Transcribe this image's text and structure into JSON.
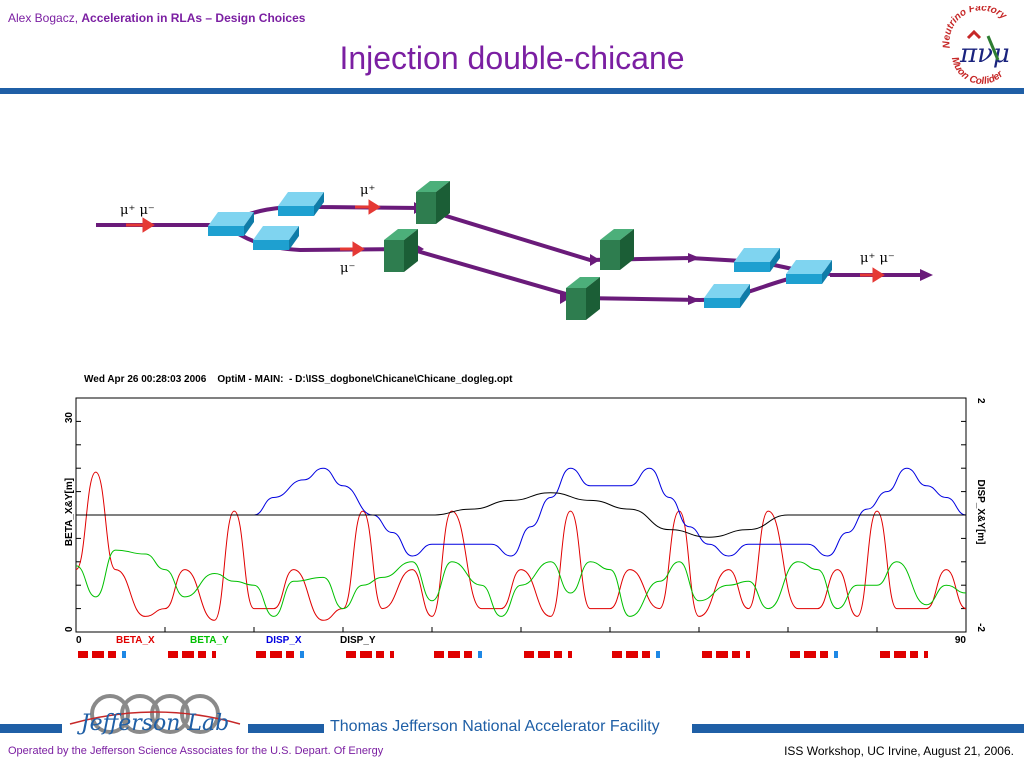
{
  "header": {
    "author": "Alex Bogacz,",
    "talk": "Acceleration in RLAs – Design Choices",
    "title": "Injection double-chicane"
  },
  "logo": {
    "text_top": "Neutrino Factory",
    "text_bottom": "Muon Collider",
    "glyph": "πνμ"
  },
  "diagram": {
    "label_in": "μ⁺ μ⁻",
    "label_upper": "μ⁺",
    "label_lower": "μ⁻",
    "label_out": "μ⁺ μ⁻",
    "colors": {
      "beam": "#6a1b7a",
      "arrow": "#e53935",
      "dipole": "#1ea0d0",
      "quad": "#2e7d4f"
    }
  },
  "plot": {
    "header": "Wed Apr 26 00:28:03 2006    OptiM - MAIN:  - D:\\ISS_dogbone\\Chicane\\Chicane_dogleg.opt"
  },
  "chart_data": {
    "type": "line",
    "title": "",
    "xlabel": "",
    "ylabel": "BETA_X&Y[m]",
    "y2label": "DISP_X&Y[m]",
    "xlim": [
      0,
      90
    ],
    "ylim": [
      0,
      30
    ],
    "y2lim": [
      -2,
      2
    ],
    "x_ticks": [
      "0",
      "90"
    ],
    "y_ticks": [
      "0",
      "30"
    ],
    "y2_ticks": [
      "-2",
      "2"
    ],
    "legend": [
      "BETA_X",
      "BETA_Y",
      "DISP_X",
      "DISP_Y"
    ],
    "series": [
      {
        "name": "BETA_X",
        "color": "#e00000",
        "x": [
          0,
          2,
          4,
          7,
          9,
          11,
          14,
          16,
          18,
          20,
          22,
          25,
          27,
          29,
          31,
          34,
          36,
          38,
          41,
          43,
          45,
          48,
          50,
          52,
          54,
          56,
          59,
          61,
          63,
          66,
          68,
          70,
          73,
          75,
          77,
          79,
          81,
          83,
          86,
          88,
          90
        ],
        "y": [
          8,
          20.5,
          8,
          2,
          3,
          8,
          1.5,
          15.5,
          3,
          3,
          8,
          1.5,
          3,
          15.5,
          3,
          8,
          2,
          15.5,
          3,
          3,
          8,
          2,
          15.5,
          3,
          3,
          8,
          3,
          15.5,
          2,
          8,
          3,
          15.5,
          3,
          3,
          8,
          2,
          15.5,
          3,
          3,
          8,
          3
        ]
      },
      {
        "name": "BETA_Y",
        "color": "#00c000",
        "x": [
          0,
          2,
          4,
          7,
          9,
          11,
          14,
          16,
          18,
          20,
          22,
          25,
          27,
          29,
          31,
          34,
          36,
          38,
          41,
          43,
          45,
          48,
          50,
          52,
          54,
          56,
          59,
          61,
          63,
          66,
          68,
          70,
          73,
          75,
          77,
          79,
          81,
          83,
          86,
          88,
          90
        ],
        "y": [
          8.5,
          4.5,
          10.5,
          10,
          8,
          4.5,
          7.5,
          6.5,
          6,
          2,
          6.5,
          7,
          3,
          6,
          7,
          9,
          4,
          9,
          6,
          2,
          6,
          9,
          5,
          9,
          8,
          2,
          6.5,
          9,
          4,
          6,
          6.5,
          3,
          9,
          8,
          3,
          6,
          6,
          9,
          3.5,
          6,
          5
        ]
      },
      {
        "name": "DISP_X",
        "color": "#0000e0",
        "x": [
          0,
          5,
          9,
          14,
          18,
          20,
          23,
          25,
          27,
          30,
          32,
          34,
          36,
          38,
          40,
          42,
          44,
          46,
          48,
          50,
          52,
          54,
          56,
          58,
          60,
          62,
          64,
          66,
          68,
          70,
          72,
          74,
          76,
          78,
          80,
          82,
          84,
          86,
          88,
          90
        ],
        "y": [
          0,
          0,
          0,
          0,
          0,
          0.3,
          0.6,
          0.8,
          0.5,
          0,
          -0.3,
          -0.7,
          -0.5,
          -0.5,
          -0.5,
          -0.5,
          -0.7,
          -0.2,
          0.3,
          0.8,
          0.5,
          0.5,
          0.5,
          0.8,
          0.3,
          -0.2,
          -0.5,
          -0.7,
          -0.5,
          -0.5,
          -0.5,
          -0.5,
          -0.7,
          -0.3,
          0.1,
          0.4,
          0.8,
          0.5,
          0.3,
          0
        ]
      },
      {
        "name": "DISP_Y",
        "color": "#000000",
        "x": [
          0,
          10,
          20,
          28,
          32,
          36,
          40,
          44,
          48,
          52,
          56,
          60,
          64,
          68,
          72,
          80,
          90
        ],
        "y": [
          0,
          0,
          0,
          0,
          0,
          0,
          0.1,
          0.25,
          0.38,
          0.25,
          0.1,
          -0.25,
          -0.38,
          -0.25,
          0,
          0,
          0
        ]
      }
    ]
  },
  "footer": {
    "facility": "Thomas Jefferson National Accelerator Facility",
    "jlab_logo": "Jefferson Lab",
    "operated": "Operated by the Jefferson Science Associates for the U.S. Depart. Of Energy",
    "event": "ISS Workshop, UC Irvine,  August 21, 2006."
  }
}
